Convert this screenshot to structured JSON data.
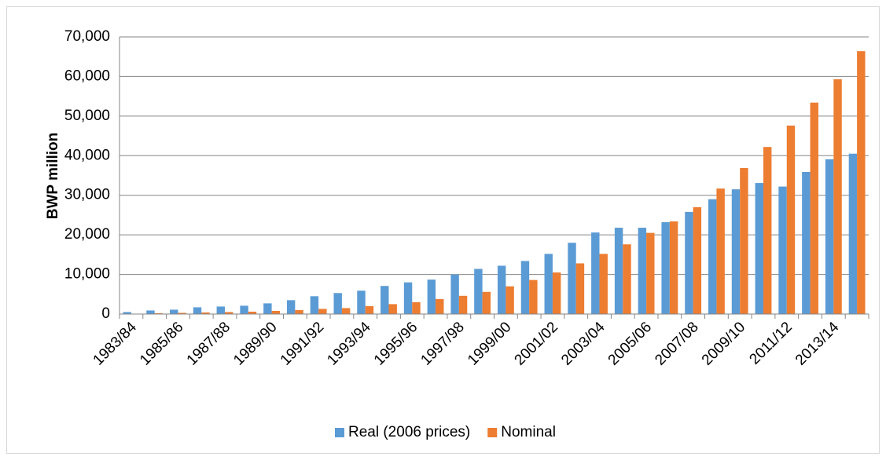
{
  "chart_data": {
    "type": "bar",
    "y_label": "BWP million",
    "categories": [
      "1983/84",
      null,
      "1985/86",
      null,
      "1987/88",
      null,
      "1989/90",
      null,
      "1991/92",
      null,
      "1993/94",
      null,
      "1995/96",
      null,
      "1997/98",
      null,
      "1999/00",
      null,
      "2001/02",
      null,
      "2003/04",
      null,
      "2005/06",
      null,
      "2007/08",
      null,
      "2009/10",
      null,
      "2011/12",
      null,
      "2013/14",
      null
    ],
    "series": [
      {
        "name": "Real (2006 prices)",
        "color": "#5b9bd5",
        "values": [
          500,
          900,
          1100,
          1700,
          1900,
          2100,
          2700,
          3500,
          4500,
          5300,
          5900,
          7100,
          8000,
          8700,
          10000,
          11400,
          12200,
          13400,
          15200,
          18000,
          20600,
          21800,
          21800,
          23200,
          25800,
          29000,
          31500,
          33100,
          32200,
          35900,
          39100,
          40500
        ]
      },
      {
        "name": "Nominal",
        "color": "#ed7d31",
        "values": [
          100,
          200,
          300,
          400,
          500,
          600,
          800,
          1000,
          1300,
          1500,
          2000,
          2500,
          3000,
          3800,
          4600,
          5600,
          7000,
          8600,
          10500,
          12800,
          15200,
          17600,
          20500,
          23400,
          27000,
          31700,
          36900,
          42200,
          47600,
          53400,
          59300,
          66400
        ]
      }
    ],
    "ylim": [
      0,
      70000
    ],
    "yticks": [
      0,
      {
        "value": 10000,
        "label": "10,000"
      },
      {
        "value": 20000,
        "label": "20,000"
      },
      {
        "value": 30000,
        "label": "30,000"
      },
      {
        "value": 40000,
        "label": "40,000"
      },
      {
        "value": 50000,
        "label": "50,000"
      },
      {
        "value": 60000,
        "label": "60,000"
      },
      {
        "value": 70000,
        "label": "70,000"
      }
    ],
    "grid": true,
    "legend": "bottom"
  }
}
